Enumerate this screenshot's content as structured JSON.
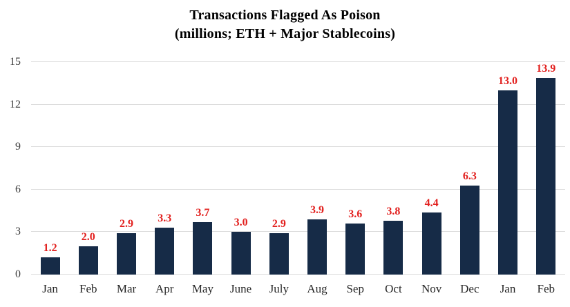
{
  "chart": {
    "title_line1": "Transactions Flagged As Poison",
    "title_line2": "(millions; ETH + Major Stablecoins)"
  },
  "chart_data": {
    "type": "bar",
    "title": "Transactions Flagged As Poison (millions; ETH + Major Stablecoins)",
    "categories": [
      "Jan",
      "Feb",
      "Mar",
      "Apr",
      "May",
      "June",
      "July",
      "Aug",
      "Sep",
      "Oct",
      "Nov",
      "Dec",
      "Jan",
      "Feb"
    ],
    "values": [
      1.2,
      2.0,
      2.9,
      3.3,
      3.7,
      3.0,
      2.9,
      3.9,
      3.6,
      3.8,
      4.4,
      6.3,
      13.0,
      13.9
    ],
    "value_labels": [
      "1.2",
      "2.0",
      "2.9",
      "3.3",
      "3.7",
      "3.0",
      "2.9",
      "3.9",
      "3.6",
      "3.8",
      "4.4",
      "6.3",
      "13.0",
      "13.9"
    ],
    "xlabel": "",
    "ylabel": "",
    "yticks": [
      0,
      3,
      6,
      9,
      12,
      15
    ],
    "ylim": [
      0,
      15
    ],
    "grid": true,
    "legend": "none",
    "colors": {
      "bar": "#162B47",
      "value_label": "#E2201E",
      "gridline": "#DCDCDC",
      "axis_text": "#404040",
      "title_text": "#000000",
      "background": "#FFFFFF"
    }
  }
}
